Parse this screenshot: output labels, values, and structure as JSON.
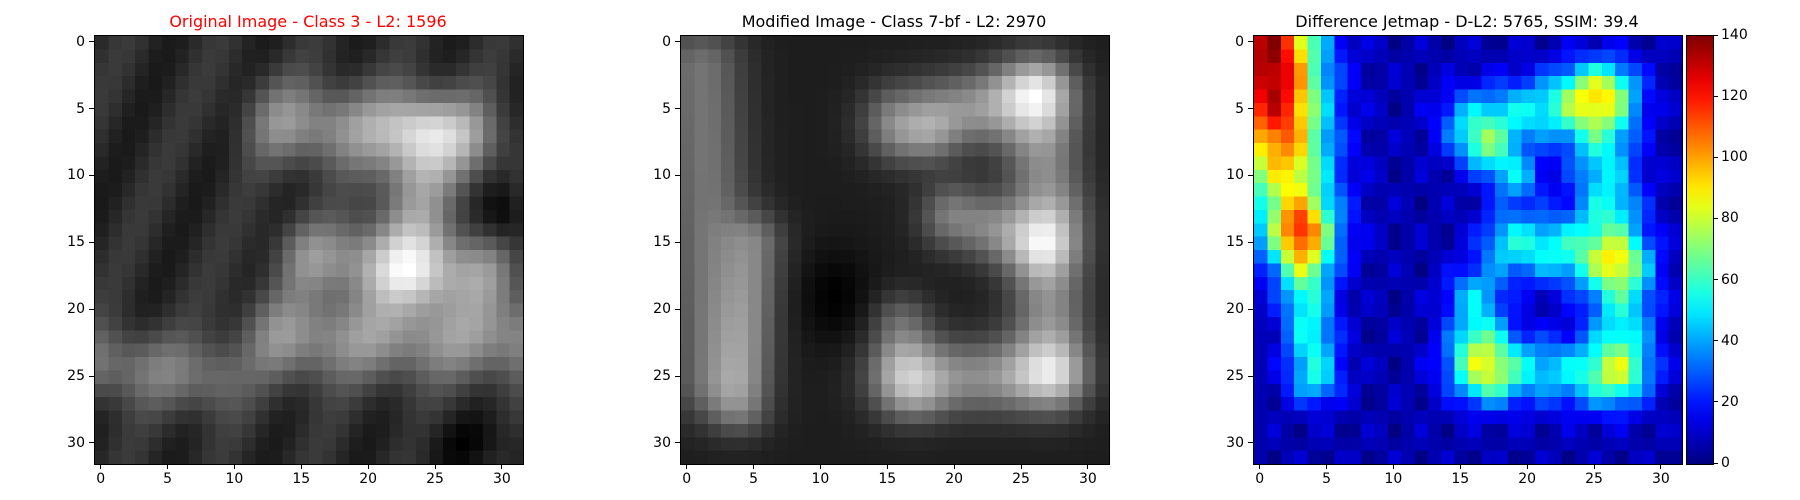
{
  "chart_data": [
    {
      "type": "heatmap",
      "title": "Original Image - Class 3 - L2: 1596",
      "title_color": "#ff0000",
      "colormap": "gray",
      "x_ticks": [
        0,
        5,
        10,
        15,
        20,
        25,
        30
      ],
      "y_ticks": [
        0,
        5,
        10,
        15,
        20,
        25,
        30
      ],
      "xlim": [
        -0.5,
        31.5
      ],
      "ylim": [
        31.5,
        -0.5
      ],
      "grid": false,
      "image_size": [
        32,
        32
      ]
    },
    {
      "type": "heatmap",
      "title": "Modified Image - Class 7-bf - L2: 2970",
      "title_color": "#000000",
      "colormap": "gray",
      "x_ticks": [
        0,
        5,
        10,
        15,
        20,
        25,
        30
      ],
      "y_ticks": [
        0,
        5,
        10,
        15,
        20,
        25,
        30
      ],
      "xlim": [
        -0.5,
        31.5
      ],
      "ylim": [
        31.5,
        -0.5
      ],
      "grid": false,
      "image_size": [
        32,
        32
      ]
    },
    {
      "type": "heatmap",
      "title": "Difference Jetmap - D-L2: 5765, SSIM: 39.4",
      "title_color": "#000000",
      "colormap": "jet",
      "x_ticks": [
        0,
        5,
        10,
        15,
        20,
        25,
        30
      ],
      "y_ticks": [
        0,
        5,
        10,
        15,
        20,
        25,
        30
      ],
      "xlim": [
        -0.5,
        31.5
      ],
      "ylim": [
        31.5,
        -0.5
      ],
      "grid": false,
      "image_size": [
        32,
        32
      ],
      "colorbar": {
        "min": 0,
        "max": 140,
        "ticks": [
          0,
          20,
          40,
          60,
          80,
          100,
          120,
          140
        ]
      }
    }
  ]
}
